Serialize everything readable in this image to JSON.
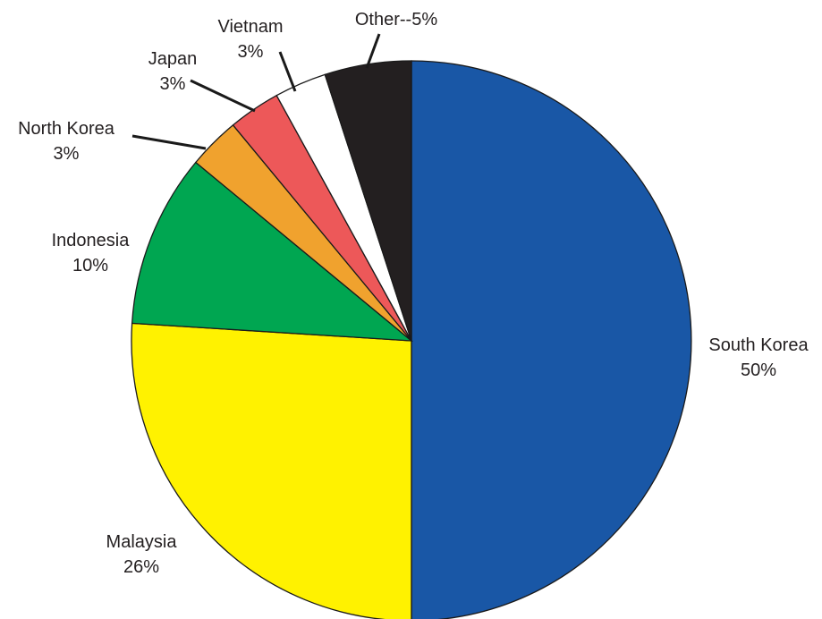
{
  "chart_data": {
    "type": "pie",
    "title": "",
    "direction": "clockwise",
    "start_angle_deg": 90,
    "slices": [
      {
        "name": "South Korea",
        "value": 50,
        "label_name": "South Korea",
        "label_value": "50%",
        "color": "#1957a6"
      },
      {
        "name": "Malaysia",
        "value": 26,
        "label_name": "Malaysia",
        "label_value": "26%",
        "color": "#fff200"
      },
      {
        "name": "Indonesia",
        "value": 10,
        "label_name": "Indonesia",
        "label_value": "10%",
        "color": "#00a651"
      },
      {
        "name": "North Korea",
        "value": 3,
        "label_name": "North Korea",
        "label_value": "3%",
        "color": "#f0a22e"
      },
      {
        "name": "Japan",
        "value": 3,
        "label_name": "Japan",
        "label_value": "3%",
        "color": "#ed5859"
      },
      {
        "name": "Vietnam",
        "value": 3,
        "label_name": "Vietnam",
        "label_value": "3%",
        "color": "#ffffff"
      },
      {
        "name": "Other",
        "value": 5,
        "label_name": "Other--5%",
        "label_value": "",
        "color": "#231f20"
      }
    ]
  }
}
